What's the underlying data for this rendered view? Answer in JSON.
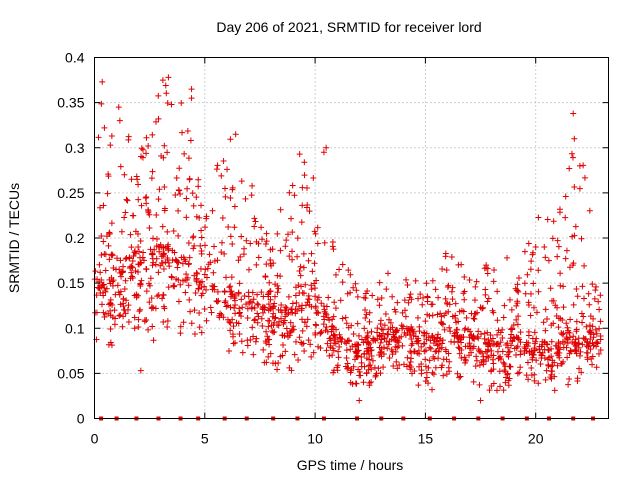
{
  "chart_data": {
    "type": "scatter",
    "title": "Day 206 of 2021, SRMTID for receiver lord",
    "xlabel": "GPS time / hours",
    "ylabel": "SRMTID / TECUs",
    "xlim": [
      0,
      23.3
    ],
    "ylim": [
      0,
      0.4
    ],
    "x_ticks": [
      0,
      5,
      10,
      15,
      20
    ],
    "x_tick_labels": [
      "0",
      "5",
      "10",
      "15",
      "20"
    ],
    "y_ticks": [
      0,
      0.05,
      0.1,
      0.15,
      0.2,
      0.25,
      0.3,
      0.35,
      0.4
    ],
    "y_tick_labels": [
      "0",
      "0.05",
      "0.1",
      "0.15",
      "0.2",
      "0.25",
      "0.3",
      "0.35",
      "0.4"
    ],
    "grid": true,
    "marker": "+",
    "color": "#e00000",
    "series": [
      {
        "name": "SRMTID",
        "profile_description": "Approximate envelope read from the plot; dense point cloud sampled per hour",
        "hourly_profile": {
          "hours": [
            0,
            1,
            2,
            3,
            4,
            5,
            6,
            7,
            8,
            9,
            10,
            11,
            12,
            13,
            14,
            15,
            16,
            17,
            18,
            19,
            20,
            21,
            22,
            23
          ],
          "median": [
            0.14,
            0.16,
            0.17,
            0.19,
            0.18,
            0.15,
            0.14,
            0.13,
            0.12,
            0.12,
            0.14,
            0.09,
            0.08,
            0.09,
            0.1,
            0.09,
            0.09,
            0.09,
            0.08,
            0.09,
            0.08,
            0.08,
            0.1,
            0.09
          ],
          "low": [
            0.06,
            0.07,
            0.06,
            0.08,
            0.07,
            0.08,
            0.07,
            0.06,
            0.05,
            0.05,
            0.06,
            0.04,
            0.02,
            0.04,
            0.04,
            0.03,
            0.03,
            0.04,
            0.02,
            0.03,
            0.03,
            0.03,
            0.04,
            0.05
          ],
          "high": [
            0.37,
            0.35,
            0.31,
            0.38,
            0.37,
            0.23,
            0.32,
            0.27,
            0.19,
            0.29,
            0.3,
            0.18,
            0.15,
            0.16,
            0.17,
            0.15,
            0.19,
            0.16,
            0.18,
            0.15,
            0.23,
            0.22,
            0.34,
            0.14
          ]
        },
        "highlight_points": [
          {
            "x": 0.35,
            "y": 0.373
          },
          {
            "x": 0.45,
            "y": 0.322
          },
          {
            "x": 1.1,
            "y": 0.345
          },
          {
            "x": 1.15,
            "y": 0.33
          },
          {
            "x": 3.1,
            "y": 0.375
          },
          {
            "x": 3.35,
            "y": 0.378
          },
          {
            "x": 4.4,
            "y": 0.365
          },
          {
            "x": 4.4,
            "y": 0.355
          },
          {
            "x": 6.4,
            "y": 0.315
          },
          {
            "x": 9.3,
            "y": 0.293
          },
          {
            "x": 10.5,
            "y": 0.3
          },
          {
            "x": 10.4,
            "y": 0.295
          },
          {
            "x": 21.7,
            "y": 0.338
          },
          {
            "x": 21.75,
            "y": 0.31
          },
          {
            "x": 18.7,
            "y": 0.178
          },
          {
            "x": 20.0,
            "y": 0.19
          },
          {
            "x": 17.5,
            "y": 0.02
          },
          {
            "x": 12.0,
            "y": 0.02
          },
          {
            "x": 2.1,
            "y": 0.053
          },
          {
            "x": 15.3,
            "y": 0.032
          }
        ],
        "baseline_markers_x": [
          0.3,
          1.0,
          1.9,
          2.9,
          3.9,
          4.7,
          5.9,
          6.9,
          8.1,
          9.2,
          10.4,
          11.9,
          13.0,
          14.0,
          15.2,
          16.3,
          17.4,
          18.5,
          19.6,
          20.6,
          21.7,
          22.6
        ]
      }
    ]
  }
}
